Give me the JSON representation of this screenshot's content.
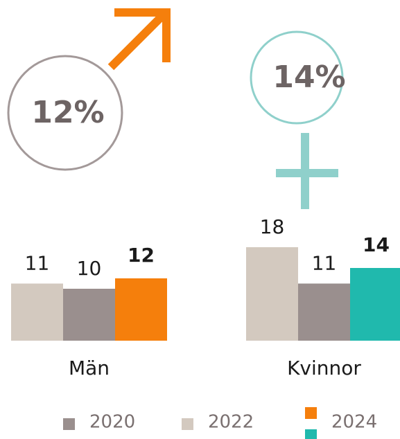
{
  "chart_data": {
    "type": "bar",
    "annotations": [
      "12%",
      "14%"
    ],
    "categories": [
      "Män",
      "Kvinnor"
    ],
    "series": [
      {
        "name": "2020",
        "color": "#9a8f8e",
        "values": [
          10,
          11
        ]
      },
      {
        "name": "2022",
        "color": "#d3c9bf",
        "values": [
          11,
          18
        ]
      },
      {
        "name": "2024",
        "colors": [
          "#f57f0c",
          "#20b9ad"
        ],
        "values": [
          12,
          14
        ]
      }
    ]
  }
}
